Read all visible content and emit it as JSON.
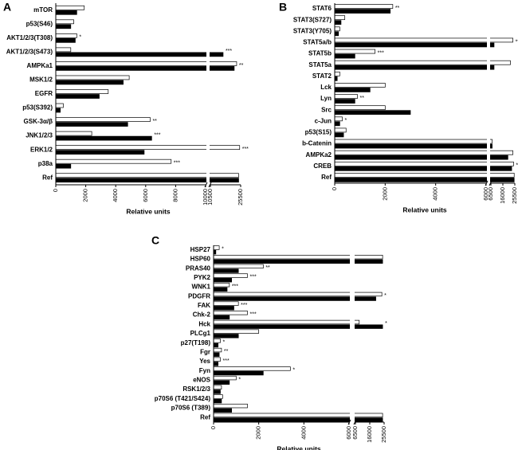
{
  "chart_data": [
    {
      "type": "bar",
      "orientation": "horizontal",
      "panel_label": "A",
      "x_label": "Relative units",
      "categories": [
        "mTOR",
        "p53(S46)",
        "AKT1/2/3(T308)",
        "AKT1/2/3(S473)",
        "AMPKa1",
        "MSK1/2",
        "EGFR",
        "p53(S392)",
        "GSK-3α/β",
        "JNK1/2/3",
        "ERK1/2",
        "p38a",
        "Ref"
      ],
      "series": [
        {
          "color": "#ffffff",
          "values": [
            1900,
            1200,
            1400,
            1000,
            23500,
            4900,
            3500,
            500,
            6300,
            2400,
            25000,
            7700,
            24500
          ]
        },
        {
          "color": "#000000",
          "values": [
            1400,
            1000,
            1300,
            16800,
            22300,
            4500,
            2900,
            300,
            4800,
            6400,
            5900,
            1000,
            24500
          ]
        }
      ],
      "annotations": [
        null,
        null,
        "*",
        "***",
        "**",
        null,
        null,
        null,
        "**",
        "***",
        "***",
        "***",
        null
      ],
      "x_segments": [
        {
          "xlim": [
            0,
            10000
          ],
          "xticks": [
            0,
            2000,
            4000,
            6000,
            8000,
            10000
          ]
        },
        {
          "xlim": [
            10500,
            25500
          ],
          "xticks": [
            10500,
            25500
          ]
        }
      ]
    },
    {
      "type": "bar",
      "orientation": "horizontal",
      "panel_label": "B",
      "x_label": "Relative units",
      "categories": [
        "STAT6",
        "STAT3(S727)",
        "STAT3(Y705)",
        "STAT5a/b",
        "STAT5b",
        "STAT5a",
        "STAT2",
        "Lck",
        "Lyn",
        "Src",
        "c-Jun",
        "p53(S15)",
        "b-Catenin",
        "AMPKa2",
        "CREB",
        "Ref"
      ],
      "series": [
        {
          "color": "#ffffff",
          "values": [
            2300,
            400,
            200,
            24000,
            1600,
            22000,
            200,
            2000,
            900,
            2000,
            300,
            450,
            7500,
            24000,
            24500,
            25000
          ]
        },
        {
          "color": "#000000",
          "values": [
            2200,
            250,
            150,
            9000,
            800,
            9000,
            100,
            1400,
            800,
            3000,
            200,
            350,
            7500,
            20000,
            23000,
            25000
          ]
        }
      ],
      "annotations": [
        "**",
        null,
        null,
        "***",
        "***",
        null,
        null,
        null,
        "**",
        null,
        "*",
        null,
        null,
        null,
        "**",
        null
      ],
      "x_segments": [
        {
          "xlim": [
            0,
            6000
          ],
          "xticks": [
            0,
            2000,
            4000,
            6000
          ]
        },
        {
          "xlim": [
            6500,
            25500
          ],
          "xticks": [
            6500,
            16000,
            25500
          ]
        }
      ]
    },
    {
      "type": "bar",
      "orientation": "horizontal",
      "panel_label": "C",
      "x_label": "Relative units",
      "categories": [
        "HSP27",
        "HSP60",
        "PRAS40",
        "PYK2",
        "WNK1",
        "PDGFR",
        "FAK",
        "Chk-2",
        "Hck",
        "PLCg1",
        "p27(T198)",
        "Fgr",
        "Yes",
        "Fyn",
        "eNOS",
        "RSK1/2/3",
        "p70S6 (T421/S424)",
        "p70S6 (T389)",
        "Ref"
      ],
      "series": [
        {
          "color": "#ffffff",
          "values": [
            250,
            24500,
            2200,
            1500,
            700,
            24000,
            1100,
            1500,
            9000,
            2000,
            300,
            350,
            300,
            3400,
            1000,
            350,
            400,
            1500,
            24500
          ]
        },
        {
          "color": "#000000",
          "values": [
            100,
            24500,
            1100,
            800,
            600,
            20000,
            900,
            700,
            24500,
            1100,
            200,
            250,
            200,
            2200,
            700,
            300,
            350,
            800,
            24500
          ]
        }
      ],
      "annotations": [
        "*",
        null,
        "**",
        "***",
        "***",
        "*",
        "***",
        "***",
        "*",
        null,
        "*",
        "**",
        "***",
        "*",
        "*",
        null,
        null,
        null,
        null
      ],
      "x_segments": [
        {
          "xlim": [
            0,
            6000
          ],
          "xticks": [
            0,
            2000,
            4000,
            6000
          ]
        },
        {
          "xlim": [
            6500,
            25500
          ],
          "xticks": [
            6500,
            16000,
            25500
          ]
        }
      ]
    }
  ]
}
